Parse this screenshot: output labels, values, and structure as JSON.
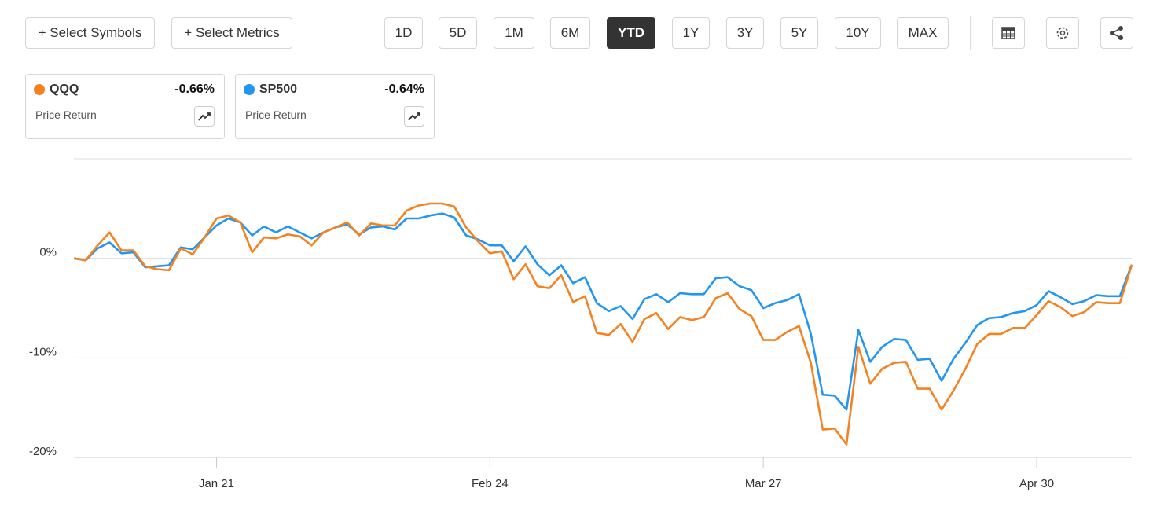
{
  "toolbar": {
    "select_symbols": "+ Select Symbols",
    "select_metrics": "+ Select Metrics",
    "ranges": [
      "1D",
      "5D",
      "1M",
      "6M",
      "YTD",
      "1Y",
      "3Y",
      "5Y",
      "10Y",
      "MAX"
    ],
    "active_range": "YTD"
  },
  "cards": [
    {
      "change": "-0.66%",
      "metric": "Price Return"
    },
    {
      "change": "-0.64%",
      "metric": "Price Return"
    }
  ],
  "chart_data": {
    "type": "line",
    "categories": [
      null,
      null,
      null,
      null,
      null,
      null,
      null,
      null,
      null,
      null,
      null,
      null,
      "Jan 21",
      null,
      null,
      null,
      null,
      null,
      null,
      null,
      null,
      null,
      null,
      null,
      null,
      null,
      null,
      null,
      null,
      null,
      null,
      null,
      null,
      null,
      null,
      "Feb 24",
      null,
      null,
      null,
      null,
      null,
      null,
      null,
      null,
      null,
      null,
      null,
      null,
      null,
      null,
      null,
      null,
      null,
      null,
      null,
      null,
      null,
      null,
      "Mar 27",
      null,
      null,
      null,
      null,
      null,
      null,
      null,
      null,
      null,
      null,
      null,
      null,
      null,
      null,
      null,
      null,
      null,
      null,
      null,
      null,
      null,
      null,
      "Apr 30",
      null,
      null,
      null,
      null,
      null,
      null,
      null,
      null
    ],
    "series": [
      {
        "name": "QQQ",
        "color": "#f5821f",
        "values": [
          0,
          -0.2,
          1.3,
          2.6,
          0.8,
          0.8,
          -0.8,
          -1.1,
          -1.2,
          1.0,
          0.4,
          2.1,
          4.0,
          4.3,
          3.6,
          0.6,
          2.1,
          2.0,
          2.4,
          2.2,
          1.3,
          2.6,
          3.1,
          3.6,
          2.3,
          3.5,
          3.3,
          3.3,
          4.8,
          5.3,
          5.5,
          5.5,
          5.2,
          3.1,
          1.7,
          0.5,
          0.7,
          -2.1,
          -0.6,
          -2.8,
          -3.0,
          -1.7,
          -4.4,
          -3.8,
          -7.5,
          -7.7,
          -6.6,
          -8.4,
          -6.1,
          -5.5,
          -7.1,
          -5.9,
          -6.2,
          -5.9,
          -4.0,
          -3.5,
          -5.1,
          -5.8,
          -8.2,
          -8.2,
          -7.4,
          -6.8,
          -10.5,
          -17.2,
          -17.1,
          -18.7,
          -8.9,
          -12.6,
          -11.1,
          -10.5,
          -10.4,
          -13.1,
          -13.1,
          -15.2,
          -13.3,
          -11.1,
          -8.6,
          -7.6,
          -7.6,
          -7.0,
          -7.0,
          -5.7,
          -4.3,
          -4.9,
          -5.8,
          -5.4,
          -4.4,
          -4.5,
          -4.5,
          -0.66
        ]
      },
      {
        "name": "SP500",
        "color": "#2196f3",
        "values": [
          0,
          -0.2,
          1.0,
          1.6,
          0.5,
          0.6,
          -0.9,
          -0.8,
          -0.7,
          1.1,
          0.9,
          2.1,
          3.3,
          4.0,
          3.6,
          2.3,
          3.2,
          2.6,
          3.2,
          2.6,
          2.0,
          2.6,
          3.1,
          3.4,
          2.4,
          3.1,
          3.2,
          2.9,
          4.0,
          4.0,
          4.3,
          4.5,
          4.1,
          2.3,
          1.9,
          1.3,
          1.3,
          -0.3,
          1.2,
          -0.6,
          -1.7,
          -0.7,
          -2.5,
          -1.9,
          -4.5,
          -5.3,
          -4.8,
          -6.1,
          -4.1,
          -3.6,
          -4.4,
          -3.5,
          -3.6,
          -3.6,
          -2.0,
          -1.9,
          -2.8,
          -3.2,
          -5.0,
          -4.5,
          -4.2,
          -3.6,
          -7.6,
          -13.7,
          -13.8,
          -15.2,
          -7.2,
          -10.4,
          -8.9,
          -8.1,
          -8.2,
          -10.2,
          -10.1,
          -12.3,
          -10.1,
          -8.5,
          -6.7,
          -6.0,
          -5.9,
          -5.5,
          -5.3,
          -4.7,
          -3.3,
          -3.9,
          -4.6,
          -4.3,
          -3.7,
          -3.8,
          -3.8,
          -0.64
        ]
      }
    ],
    "ylim": [
      -20,
      10
    ],
    "yticks": [
      {
        "value": 0,
        "label": "0%"
      },
      {
        "value": -10,
        "label": "-10%"
      },
      {
        "value": -20,
        "label": "-20%"
      }
    ],
    "grid": true
  }
}
